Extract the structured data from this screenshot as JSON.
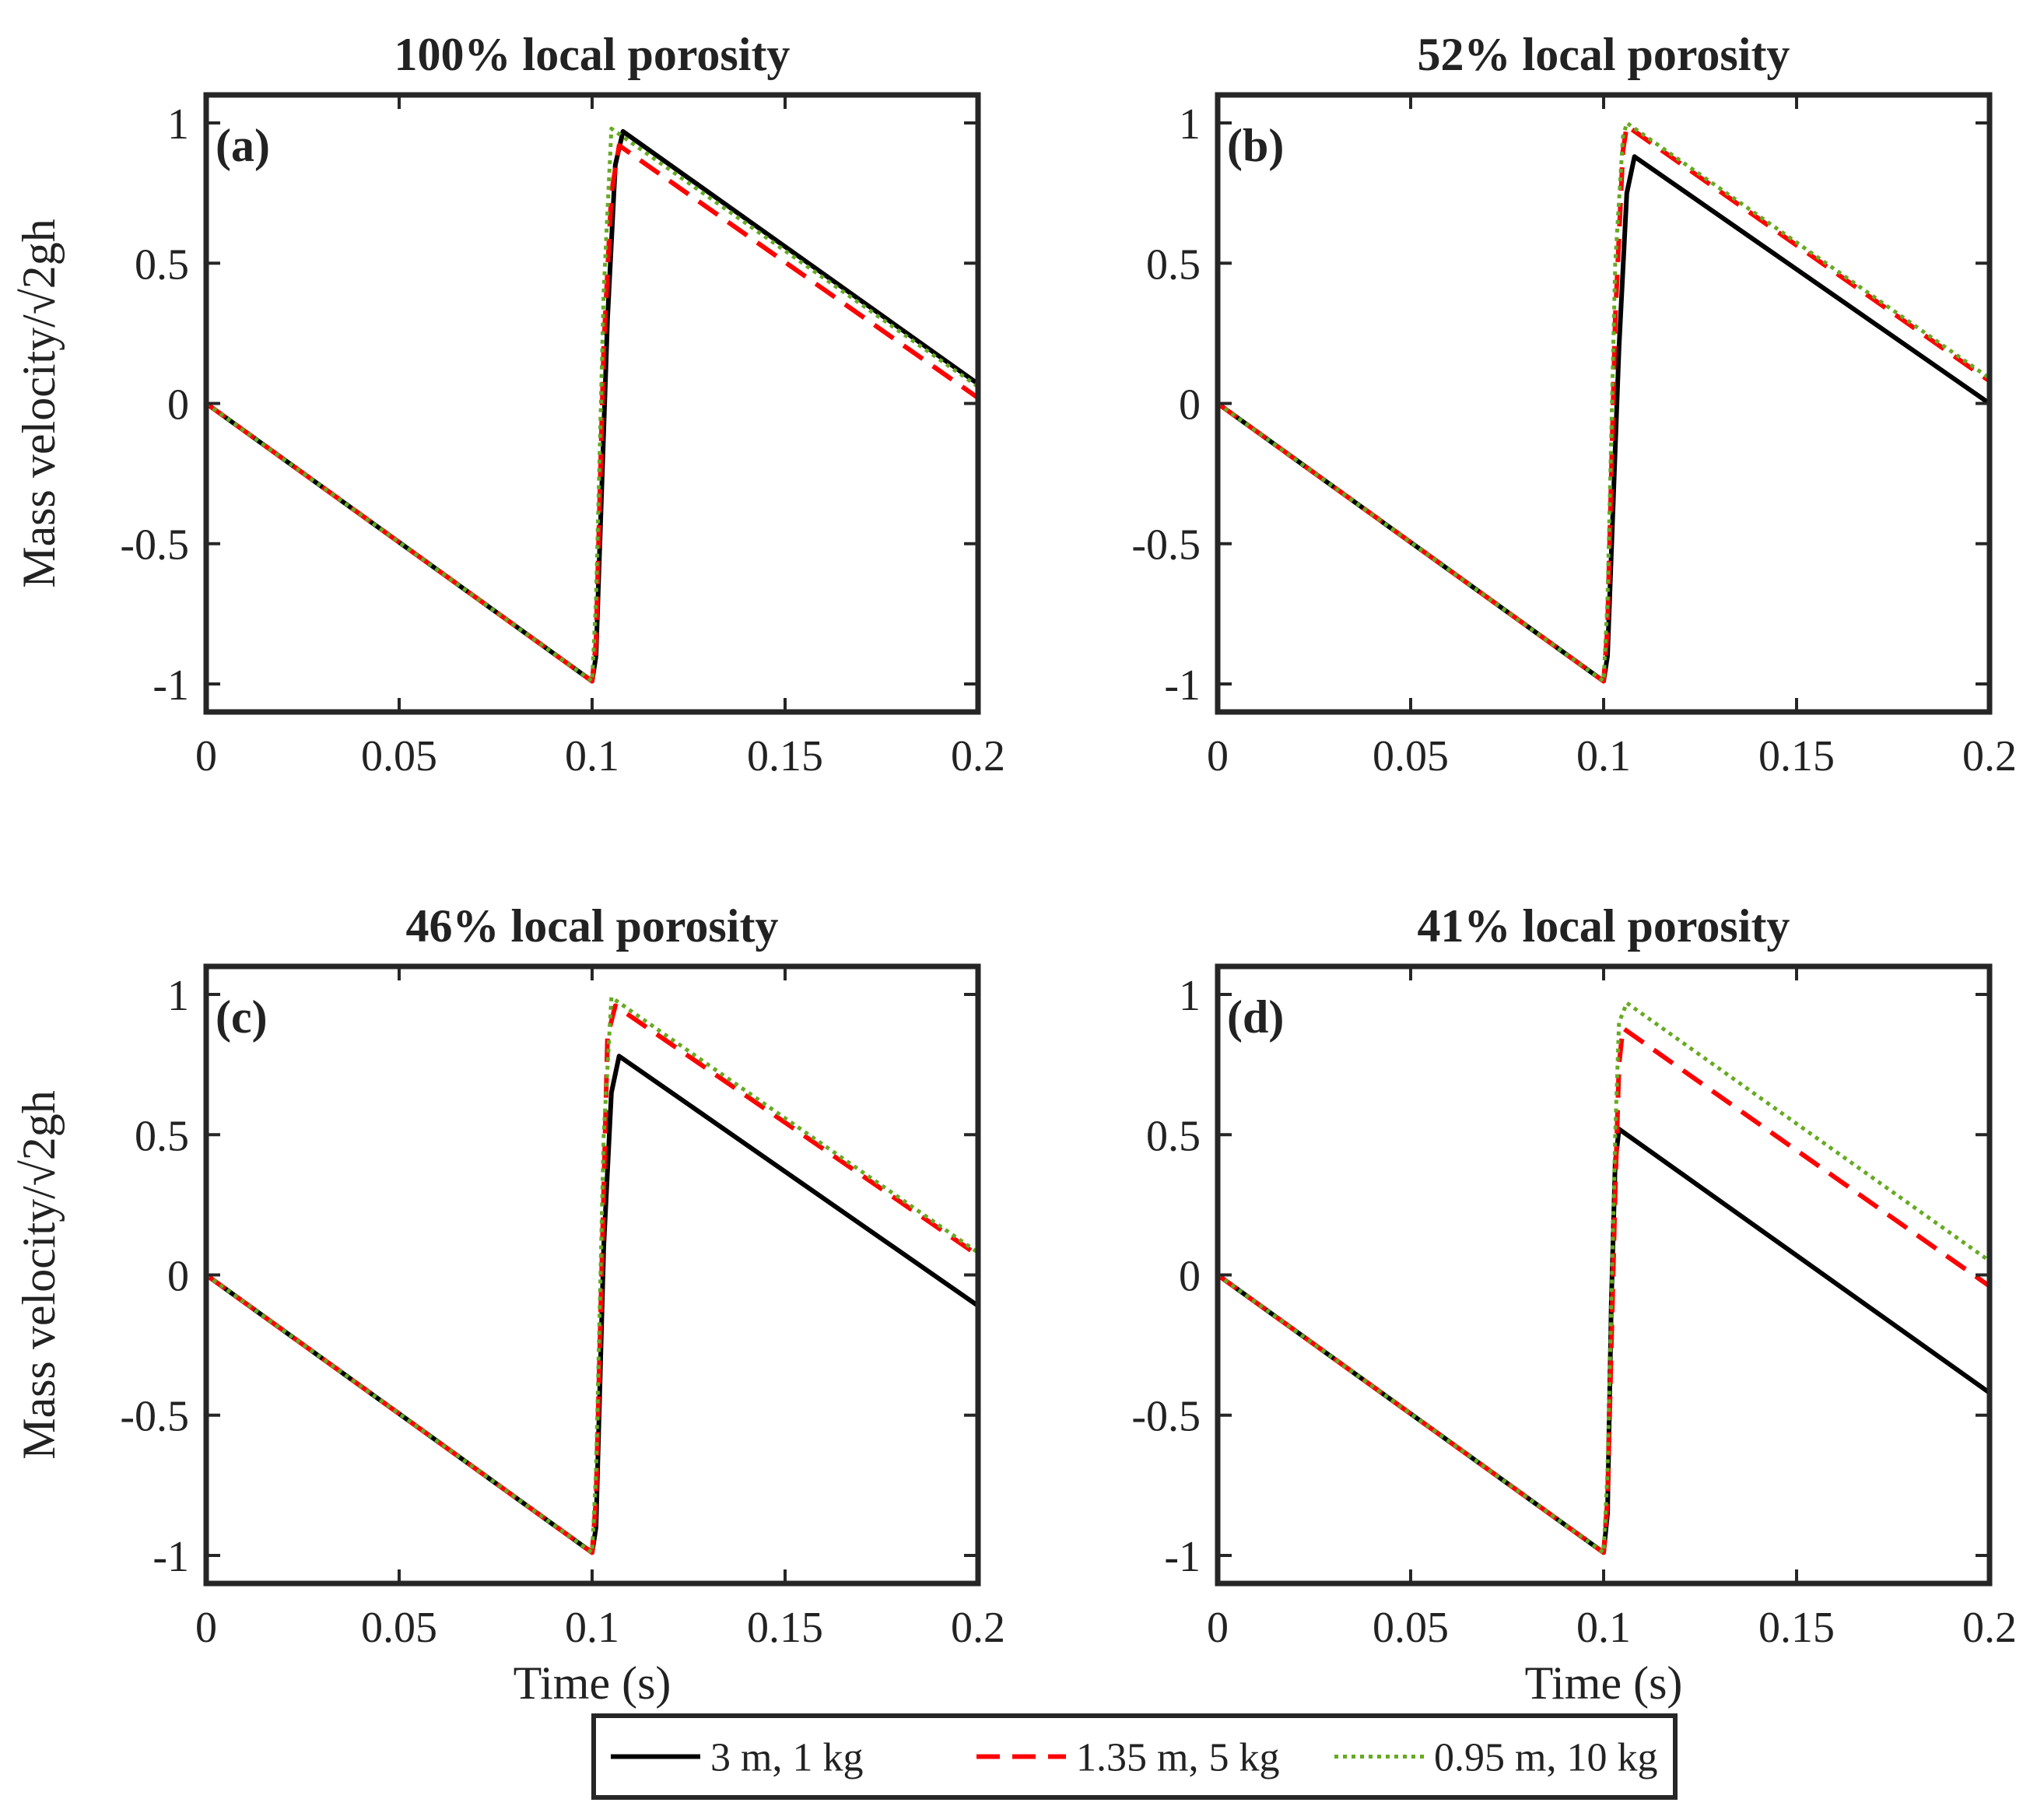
{
  "figure": {
    "legend": {
      "entries": [
        {
          "label": "3 m, 1 kg",
          "color": "#000000",
          "style": "solid"
        },
        {
          "label": "1.35 m, 5 kg",
          "color": "#ff0000",
          "style": "dashed"
        },
        {
          "label": "0.95 m, 10 kg",
          "color": "#66aa22",
          "style": "dotted"
        }
      ],
      "placement": "bottom-center"
    }
  },
  "chart_data": [
    {
      "type": "line",
      "panel": "(a)",
      "title": "100% local porosity",
      "xlabel": "",
      "ylabel": "Mass velocity/√2gh",
      "xlim": [
        0,
        0.2
      ],
      "ylim": [
        -1.1,
        1.1
      ],
      "xticks": [
        "0",
        "0.05",
        "0.1",
        "0.15",
        "0.2"
      ],
      "yticks": [
        "-1",
        "-0.5",
        "0",
        "0.5",
        "1"
      ],
      "grid": false,
      "series": [
        {
          "name": "3 m, 1 kg",
          "x": [
            0,
            0.1,
            0.101,
            0.104,
            0.106,
            0.108,
            0.2
          ],
          "y": [
            0,
            -0.99,
            -0.9,
            0.3,
            0.85,
            0.97,
            0.07
          ]
        },
        {
          "name": "1.35 m, 5 kg",
          "x": [
            0,
            0.1,
            0.101,
            0.103,
            0.105,
            0.107,
            0.2
          ],
          "y": [
            0,
            -0.99,
            -0.85,
            0.2,
            0.75,
            0.92,
            0.02
          ]
        },
        {
          "name": "0.95 m, 10 kg",
          "x": [
            0,
            0.1,
            0.101,
            0.103,
            0.105,
            0.2
          ],
          "y": [
            0,
            -0.99,
            -0.7,
            0.4,
            0.98,
            0.06
          ]
        }
      ]
    },
    {
      "type": "line",
      "panel": "(b)",
      "title": "52% local porosity",
      "xlabel": "",
      "ylabel": "",
      "xlim": [
        0,
        0.2
      ],
      "ylim": [
        -1.1,
        1.1
      ],
      "xticks": [
        "0",
        "0.05",
        "0.1",
        "0.15",
        "0.2"
      ],
      "yticks": [
        "-1",
        "-0.5",
        "0",
        "0.5",
        "1"
      ],
      "grid": false,
      "series": [
        {
          "name": "3 m, 1 kg",
          "x": [
            0,
            0.1,
            0.101,
            0.104,
            0.106,
            0.108,
            0.2
          ],
          "y": [
            0,
            -0.99,
            -0.9,
            0.2,
            0.75,
            0.88,
            0.0
          ]
        },
        {
          "name": "1.35 m, 5 kg",
          "x": [
            0,
            0.1,
            0.101,
            0.103,
            0.105,
            0.106,
            0.2
          ],
          "y": [
            0,
            -0.99,
            -0.8,
            0.3,
            0.9,
            0.99,
            0.08
          ]
        },
        {
          "name": "0.95 m, 10 kg",
          "x": [
            0,
            0.1,
            0.101,
            0.103,
            0.105,
            0.106,
            0.2
          ],
          "y": [
            0,
            -0.99,
            -0.7,
            0.5,
            0.95,
            1.0,
            0.09
          ]
        }
      ]
    },
    {
      "type": "line",
      "panel": "(c)",
      "title": "46% local porosity",
      "xlabel": "Time (s)",
      "ylabel": "Mass velocity/√2gh",
      "xlim": [
        0,
        0.2
      ],
      "ylim": [
        -1.1,
        1.1
      ],
      "xticks": [
        "0",
        "0.05",
        "0.1",
        "0.15",
        "0.2"
      ],
      "yticks": [
        "-1",
        "-0.5",
        "0",
        "0.5",
        "1"
      ],
      "grid": false,
      "series": [
        {
          "name": "3 m, 1 kg",
          "x": [
            0,
            0.1,
            0.101,
            0.103,
            0.105,
            0.107,
            0.2
          ],
          "y": [
            0,
            -0.99,
            -0.9,
            0.1,
            0.65,
            0.78,
            -0.11
          ]
        },
        {
          "name": "1.35 m, 5 kg",
          "x": [
            0,
            0.1,
            0.101,
            0.103,
            0.104,
            0.106,
            0.2
          ],
          "y": [
            0,
            -0.99,
            -0.8,
            0.3,
            0.85,
            0.96,
            0.07
          ]
        },
        {
          "name": "0.95 m, 10 kg",
          "x": [
            0,
            0.1,
            0.101,
            0.103,
            0.105,
            0.2
          ],
          "y": [
            0,
            -0.99,
            -0.7,
            0.5,
            0.99,
            0.08
          ]
        }
      ]
    },
    {
      "type": "line",
      "panel": "(d)",
      "title": "41% local porosity",
      "xlabel": "Time (s)",
      "ylabel": "",
      "xlim": [
        0,
        0.2
      ],
      "ylim": [
        -1.1,
        1.1
      ],
      "xticks": [
        "0",
        "0.05",
        "0.1",
        "0.15",
        "0.2"
      ],
      "yticks": [
        "-1",
        "-0.5",
        "0",
        "0.5",
        "1"
      ],
      "grid": false,
      "series": [
        {
          "name": "3 m, 1 kg",
          "x": [
            0,
            0.1,
            0.101,
            0.102,
            0.103,
            0.104,
            0.2
          ],
          "y": [
            0,
            -0.99,
            -0.85,
            -0.1,
            0.4,
            0.52,
            -0.42
          ]
        },
        {
          "name": "1.35 m, 5 kg",
          "x": [
            0,
            0.1,
            0.101,
            0.103,
            0.104,
            0.105,
            0.2
          ],
          "y": [
            0,
            -0.99,
            -0.8,
            0.3,
            0.75,
            0.88,
            -0.04
          ]
        },
        {
          "name": "0.95 m, 10 kg",
          "x": [
            0,
            0.1,
            0.101,
            0.103,
            0.104,
            0.106,
            0.2
          ],
          "y": [
            0,
            -0.99,
            -0.7,
            0.5,
            0.9,
            0.97,
            0.05
          ]
        }
      ]
    }
  ]
}
